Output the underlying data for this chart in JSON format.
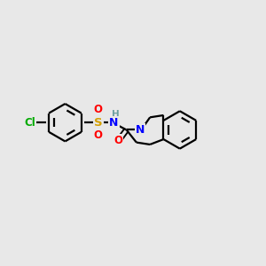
{
  "bg_color": "#e8e8e8",
  "atom_colors": {
    "C": "#000000",
    "N": "#0000ff",
    "O": "#ff0000",
    "S": "#d4a000",
    "Cl": "#00aa00",
    "H": "#6fa0a0"
  },
  "line_color": "#000000",
  "line_width": 1.6,
  "figsize": [
    3.0,
    3.0
  ],
  "dpi": 100
}
